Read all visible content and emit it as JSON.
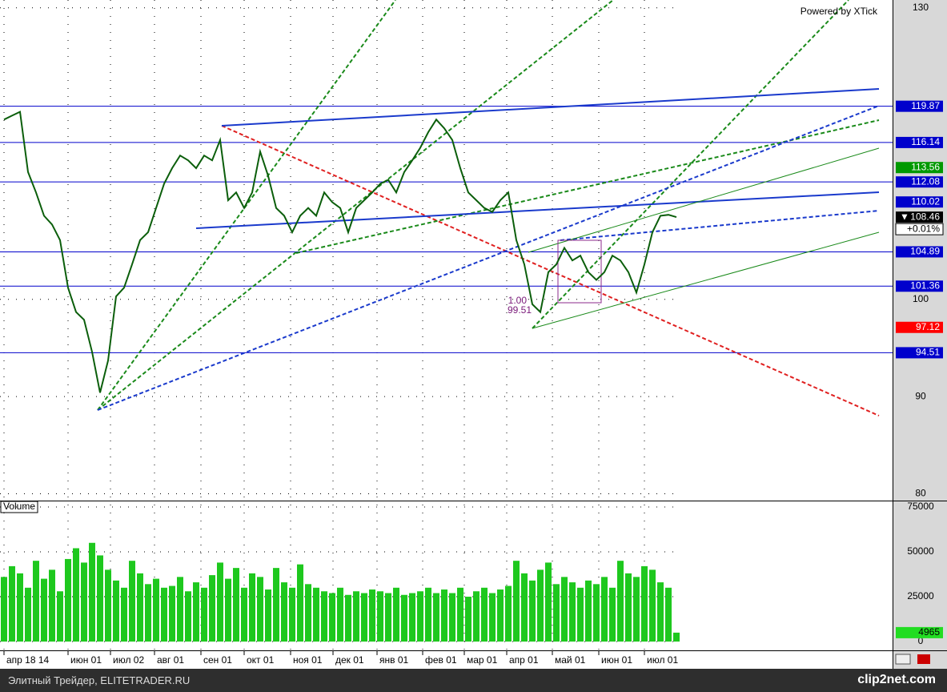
{
  "chart_data": [
    {
      "type": "price",
      "watermark": "Powered by XTick",
      "color": "#0b5e0b",
      "ylim": [
        79.3,
        130.8
      ],
      "yticks": [
        80,
        90,
        100,
        130
      ],
      "xlim": [
        -0.5,
        111
      ],
      "xticks": [
        {
          "value": 0,
          "label": "апр 18 14"
        },
        {
          "value": 8,
          "label": "июн 01"
        },
        {
          "value": 13.3,
          "label": "июл 02"
        },
        {
          "value": 18.8,
          "label": "авг 01"
        },
        {
          "value": 24.6,
          "label": "сен 01"
        },
        {
          "value": 30,
          "label": "окт 01"
        },
        {
          "value": 35.8,
          "label": "ноя 01"
        },
        {
          "value": 41.1,
          "label": "дек 01"
        },
        {
          "value": 46.6,
          "label": "янв 01"
        },
        {
          "value": 52.3,
          "label": "фев 01"
        },
        {
          "value": 57.5,
          "label": "мар 01"
        },
        {
          "value": 62.8,
          "label": "апр 01"
        },
        {
          "value": 68.5,
          "label": "май 01"
        },
        {
          "value": 74.3,
          "label": "июн 01"
        },
        {
          "value": 80,
          "label": "июл 01"
        }
      ],
      "values": [
        118.5,
        118.9,
        119.3,
        113.1,
        111.0,
        108.6,
        107.7,
        106.1,
        101.2,
        98.7,
        97.9,
        94.6,
        90.4,
        93.7,
        100.3,
        101.2,
        103.6,
        106.1,
        106.9,
        109.4,
        111.9,
        113.5,
        114.8,
        114.3,
        113.5,
        114.8,
        114.3,
        116.4,
        110.2,
        111.0,
        109.4,
        111.0,
        115.2,
        112.7,
        109.4,
        108.6,
        106.9,
        108.6,
        109.4,
        108.6,
        111.0,
        110.0,
        109.4,
        106.9,
        109.4,
        110.2,
        111.0,
        111.9,
        112.3,
        111.0,
        113.1,
        114.3,
        115.6,
        117.2,
        118.5,
        117.6,
        116.4,
        113.5,
        111.0,
        110.2,
        109.4,
        109.0,
        110.2,
        111.0,
        106.1,
        103.6,
        99.5,
        98.7,
        102.8,
        103.6,
        105.3,
        104.0,
        104.5,
        102.8,
        102.0,
        102.8,
        104.5,
        104.0,
        102.8,
        100.7,
        103.6,
        106.9,
        108.6,
        108.7,
        108.46
      ],
      "last_marker": "▼",
      "change": "+0.01%",
      "hlines": {
        "color": "#0000cc",
        "values": [
          119.87,
          116.14,
          112.08,
          104.89,
          101.36,
          94.51
        ]
      },
      "badges": [
        {
          "value": 113.56,
          "color": "#009900"
        },
        {
          "value": 110.02,
          "color": "#0000cc"
        },
        {
          "value": 97.12,
          "color": "#ff0000"
        }
      ],
      "annotations": [
        "1.00",
        "99.51"
      ]
    },
    {
      "type": "volume",
      "title": "Volume",
      "color": "#1ec81e",
      "ylim": [
        -4900,
        78100
      ],
      "yticks": [
        0,
        25000,
        50000,
        75000
      ],
      "values": [
        36000,
        42000,
        38000,
        30000,
        45000,
        35000,
        40000,
        28000,
        46000,
        52000,
        44000,
        55000,
        48000,
        40000,
        34000,
        30000,
        45000,
        38000,
        32000,
        35000,
        30000,
        31000,
        36000,
        28000,
        33000,
        30000,
        37000,
        44000,
        35000,
        41000,
        30000,
        38000,
        36000,
        29000,
        41000,
        33000,
        30000,
        43000,
        32000,
        30000,
        28000,
        27000,
        30000,
        26000,
        28000,
        27000,
        29000,
        28000,
        27000,
        30000,
        26000,
        27000,
        28000,
        30000,
        27000,
        29000,
        27000,
        30000,
        25000,
        28000,
        30000,
        27000,
        29000,
        31000,
        45000,
        38000,
        34000,
        40000,
        44000,
        32000,
        36000,
        33000,
        30000,
        34000,
        32000,
        36000,
        30000,
        45000,
        38000,
        36000,
        42000,
        40000,
        33000,
        30000,
        4965
      ]
    }
  ]
}
